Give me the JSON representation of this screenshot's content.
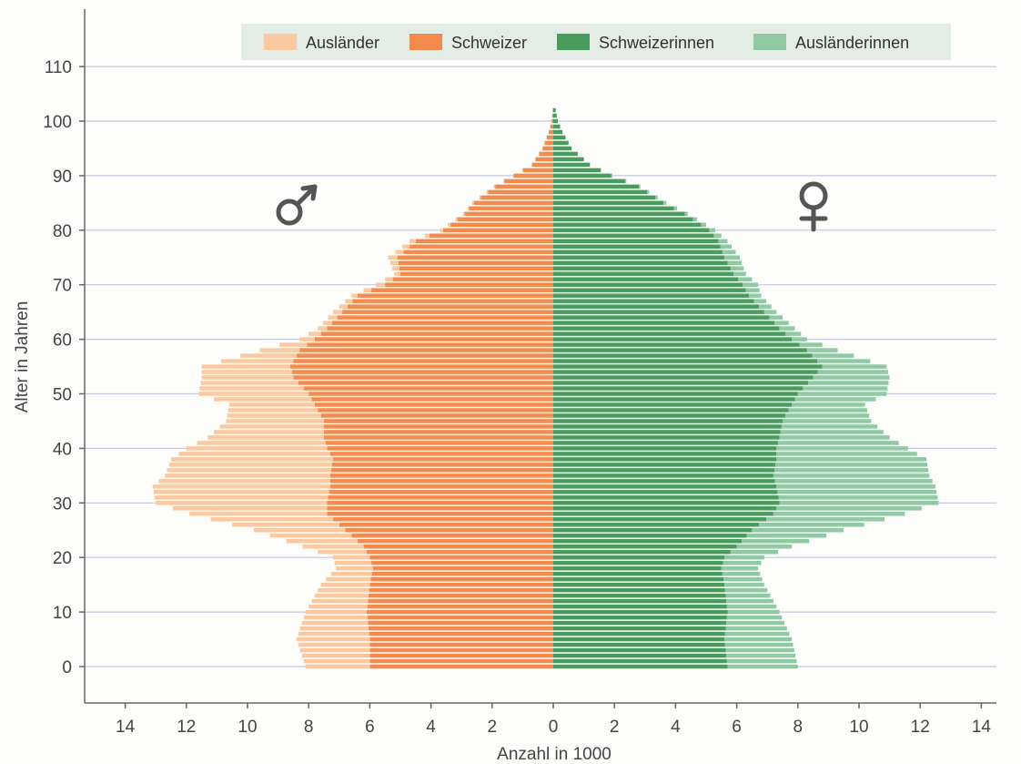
{
  "chart_data": {
    "type": "bar",
    "orientation": "horizontal-pyramid",
    "xlabel": "Anzahl in 1000",
    "ylabel": "Alter in Jahren",
    "xlim": [
      -15,
      15
    ],
    "ylim": [
      -6,
      116
    ],
    "x_ticks": [
      -14,
      -12,
      -10,
      -8,
      -6,
      -4,
      -2,
      0,
      2,
      4,
      6,
      8,
      10,
      12,
      14
    ],
    "x_tick_labels": [
      "14",
      "12",
      "10",
      "8",
      "6",
      "4",
      "2",
      "0",
      "2",
      "4",
      "6",
      "8",
      "10",
      "12",
      "14"
    ],
    "y_ticks": [
      0,
      10,
      20,
      30,
      40,
      50,
      60,
      70,
      80,
      90,
      100,
      110
    ],
    "y_tick_labels": [
      "0",
      "10",
      "20",
      "30",
      "40",
      "50",
      "60",
      "70",
      "80",
      "90",
      "100",
      "110"
    ],
    "grid": "horizontal",
    "legend_position": "top",
    "legend": [
      "Ausländer",
      "Schweizer",
      "Schweizerinnen",
      "Ausländerinnen"
    ],
    "colors": {
      "Ausländer": "#fbc9a1",
      "Schweizer": "#f48a4e",
      "Schweizerinnen": "#4a9b5e",
      "Ausländerinnen": "#90c9a3"
    },
    "symbols": {
      "male": "♂",
      "female": "♀"
    },
    "age_keypoints": [
      0,
      5,
      10,
      15,
      18,
      20,
      22,
      25,
      28,
      30,
      33,
      35,
      38,
      40,
      42,
      45,
      48,
      50,
      53,
      55,
      58,
      60,
      62,
      65,
      68,
      70,
      72,
      75,
      78,
      80,
      83,
      85,
      88,
      90,
      92,
      95,
      98,
      100,
      102
    ],
    "series": [
      {
        "name": "Schweizer",
        "side": "male",
        "values": [
          6.0,
          6.0,
          6.1,
          6.0,
          5.9,
          6.0,
          6.2,
          6.8,
          7.4,
          7.4,
          7.3,
          7.3,
          7.2,
          7.4,
          7.5,
          7.5,
          7.8,
          8.0,
          8.5,
          8.6,
          8.3,
          7.8,
          7.4,
          6.9,
          6.4,
          5.5,
          5.0,
          5.1,
          4.5,
          3.6,
          2.9,
          2.6,
          1.9,
          1.3,
          0.7,
          0.35,
          0.15,
          0.05,
          0.02
        ]
      },
      {
        "name": "Ausländer",
        "side": "male",
        "values": [
          2.1,
          2.4,
          2.0,
          1.6,
          1.2,
          1.2,
          2.0,
          3.0,
          4.5,
          5.6,
          5.8,
          5.4,
          5.3,
          4.6,
          3.8,
          3.2,
          2.8,
          3.6,
          3.0,
          2.9,
          1.3,
          0.5,
          0.3,
          0.3,
          0.2,
          0.3,
          0.2,
          0.3,
          0.2,
          0.1,
          0.05,
          0.05,
          0.05,
          0.0,
          0.0,
          0.0,
          0.0,
          0.0,
          0.0
        ]
      },
      {
        "name": "Schweizerinnen",
        "side": "female",
        "values": [
          5.7,
          5.6,
          5.7,
          5.6,
          5.5,
          5.6,
          6.0,
          6.5,
          7.2,
          7.4,
          7.3,
          7.2,
          7.3,
          7.3,
          7.4,
          7.5,
          7.8,
          8.0,
          8.5,
          8.8,
          8.3,
          7.8,
          7.4,
          6.9,
          6.4,
          6.2,
          5.9,
          5.6,
          5.4,
          5.1,
          4.3,
          3.6,
          2.8,
          1.9,
          1.2,
          0.6,
          0.3,
          0.15,
          0.08
        ]
      },
      {
        "name": "Ausländerinnen",
        "side": "female",
        "values": [
          2.3,
          2.2,
          1.7,
          1.3,
          1.2,
          1.3,
          1.8,
          3.0,
          4.3,
          5.2,
          5.2,
          5.1,
          4.9,
          4.3,
          3.6,
          2.9,
          2.4,
          2.9,
          2.5,
          2.1,
          1.0,
          0.5,
          0.5,
          0.4,
          0.4,
          0.5,
          0.4,
          0.5,
          0.3,
          0.2,
          0.1,
          0.1,
          0.05,
          0.03,
          0.0,
          0.0,
          0.0,
          0.0,
          0.0
        ]
      }
    ]
  }
}
